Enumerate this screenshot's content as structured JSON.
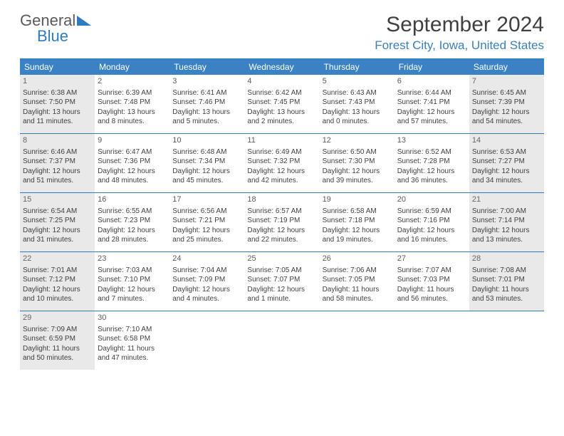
{
  "logo": {
    "general": "General",
    "blue": "Blue"
  },
  "title": "September 2024",
  "location": "Forest City, Iowa, United States",
  "colors": {
    "brand_blue": "#3a82c4",
    "border_blue": "#2f7bbf",
    "shade": "#e9e9e9",
    "text": "#404040"
  },
  "day_headers": [
    "Sunday",
    "Monday",
    "Tuesday",
    "Wednesday",
    "Thursday",
    "Friday",
    "Saturday"
  ],
  "weeks": [
    [
      {
        "n": "1",
        "shade": true,
        "sr": "Sunrise: 6:38 AM",
        "ss": "Sunset: 7:50 PM",
        "dl": "Daylight: 13 hours and 11 minutes."
      },
      {
        "n": "2",
        "shade": false,
        "sr": "Sunrise: 6:39 AM",
        "ss": "Sunset: 7:48 PM",
        "dl": "Daylight: 13 hours and 8 minutes."
      },
      {
        "n": "3",
        "shade": false,
        "sr": "Sunrise: 6:41 AM",
        "ss": "Sunset: 7:46 PM",
        "dl": "Daylight: 13 hours and 5 minutes."
      },
      {
        "n": "4",
        "shade": false,
        "sr": "Sunrise: 6:42 AM",
        "ss": "Sunset: 7:45 PM",
        "dl": "Daylight: 13 hours and 2 minutes."
      },
      {
        "n": "5",
        "shade": false,
        "sr": "Sunrise: 6:43 AM",
        "ss": "Sunset: 7:43 PM",
        "dl": "Daylight: 13 hours and 0 minutes."
      },
      {
        "n": "6",
        "shade": false,
        "sr": "Sunrise: 6:44 AM",
        "ss": "Sunset: 7:41 PM",
        "dl": "Daylight: 12 hours and 57 minutes."
      },
      {
        "n": "7",
        "shade": true,
        "sr": "Sunrise: 6:45 AM",
        "ss": "Sunset: 7:39 PM",
        "dl": "Daylight: 12 hours and 54 minutes."
      }
    ],
    [
      {
        "n": "8",
        "shade": true,
        "sr": "Sunrise: 6:46 AM",
        "ss": "Sunset: 7:37 PM",
        "dl": "Daylight: 12 hours and 51 minutes."
      },
      {
        "n": "9",
        "shade": false,
        "sr": "Sunrise: 6:47 AM",
        "ss": "Sunset: 7:36 PM",
        "dl": "Daylight: 12 hours and 48 minutes."
      },
      {
        "n": "10",
        "shade": false,
        "sr": "Sunrise: 6:48 AM",
        "ss": "Sunset: 7:34 PM",
        "dl": "Daylight: 12 hours and 45 minutes."
      },
      {
        "n": "11",
        "shade": false,
        "sr": "Sunrise: 6:49 AM",
        "ss": "Sunset: 7:32 PM",
        "dl": "Daylight: 12 hours and 42 minutes."
      },
      {
        "n": "12",
        "shade": false,
        "sr": "Sunrise: 6:50 AM",
        "ss": "Sunset: 7:30 PM",
        "dl": "Daylight: 12 hours and 39 minutes."
      },
      {
        "n": "13",
        "shade": false,
        "sr": "Sunrise: 6:52 AM",
        "ss": "Sunset: 7:28 PM",
        "dl": "Daylight: 12 hours and 36 minutes."
      },
      {
        "n": "14",
        "shade": true,
        "sr": "Sunrise: 6:53 AM",
        "ss": "Sunset: 7:27 PM",
        "dl": "Daylight: 12 hours and 34 minutes."
      }
    ],
    [
      {
        "n": "15",
        "shade": true,
        "sr": "Sunrise: 6:54 AM",
        "ss": "Sunset: 7:25 PM",
        "dl": "Daylight: 12 hours and 31 minutes."
      },
      {
        "n": "16",
        "shade": false,
        "sr": "Sunrise: 6:55 AM",
        "ss": "Sunset: 7:23 PM",
        "dl": "Daylight: 12 hours and 28 minutes."
      },
      {
        "n": "17",
        "shade": false,
        "sr": "Sunrise: 6:56 AM",
        "ss": "Sunset: 7:21 PM",
        "dl": "Daylight: 12 hours and 25 minutes."
      },
      {
        "n": "18",
        "shade": false,
        "sr": "Sunrise: 6:57 AM",
        "ss": "Sunset: 7:19 PM",
        "dl": "Daylight: 12 hours and 22 minutes."
      },
      {
        "n": "19",
        "shade": false,
        "sr": "Sunrise: 6:58 AM",
        "ss": "Sunset: 7:18 PM",
        "dl": "Daylight: 12 hours and 19 minutes."
      },
      {
        "n": "20",
        "shade": false,
        "sr": "Sunrise: 6:59 AM",
        "ss": "Sunset: 7:16 PM",
        "dl": "Daylight: 12 hours and 16 minutes."
      },
      {
        "n": "21",
        "shade": true,
        "sr": "Sunrise: 7:00 AM",
        "ss": "Sunset: 7:14 PM",
        "dl": "Daylight: 12 hours and 13 minutes."
      }
    ],
    [
      {
        "n": "22",
        "shade": true,
        "sr": "Sunrise: 7:01 AM",
        "ss": "Sunset: 7:12 PM",
        "dl": "Daylight: 12 hours and 10 minutes."
      },
      {
        "n": "23",
        "shade": false,
        "sr": "Sunrise: 7:03 AM",
        "ss": "Sunset: 7:10 PM",
        "dl": "Daylight: 12 hours and 7 minutes."
      },
      {
        "n": "24",
        "shade": false,
        "sr": "Sunrise: 7:04 AM",
        "ss": "Sunset: 7:09 PM",
        "dl": "Daylight: 12 hours and 4 minutes."
      },
      {
        "n": "25",
        "shade": false,
        "sr": "Sunrise: 7:05 AM",
        "ss": "Sunset: 7:07 PM",
        "dl": "Daylight: 12 hours and 1 minute."
      },
      {
        "n": "26",
        "shade": false,
        "sr": "Sunrise: 7:06 AM",
        "ss": "Sunset: 7:05 PM",
        "dl": "Daylight: 11 hours and 58 minutes."
      },
      {
        "n": "27",
        "shade": false,
        "sr": "Sunrise: 7:07 AM",
        "ss": "Sunset: 7:03 PM",
        "dl": "Daylight: 11 hours and 56 minutes."
      },
      {
        "n": "28",
        "shade": true,
        "sr": "Sunrise: 7:08 AM",
        "ss": "Sunset: 7:01 PM",
        "dl": "Daylight: 11 hours and 53 minutes."
      }
    ],
    [
      {
        "n": "29",
        "shade": true,
        "sr": "Sunrise: 7:09 AM",
        "ss": "Sunset: 6:59 PM",
        "dl": "Daylight: 11 hours and 50 minutes."
      },
      {
        "n": "30",
        "shade": false,
        "sr": "Sunrise: 7:10 AM",
        "ss": "Sunset: 6:58 PM",
        "dl": "Daylight: 11 hours and 47 minutes."
      },
      null,
      null,
      null,
      null,
      null
    ]
  ]
}
